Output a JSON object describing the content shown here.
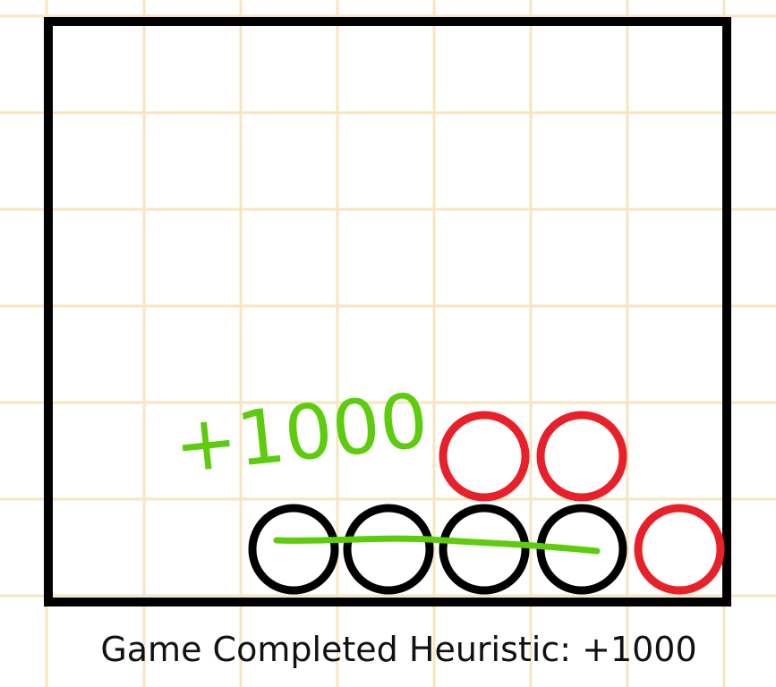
{
  "caption": "Game Completed Heuristic: +1000",
  "annotation": "+1000",
  "board": {
    "rows": 6,
    "columns": 7,
    "pieces": [
      {
        "row": 0,
        "col": 2,
        "player": "black"
      },
      {
        "row": 0,
        "col": 3,
        "player": "black"
      },
      {
        "row": 0,
        "col": 4,
        "player": "black"
      },
      {
        "row": 0,
        "col": 5,
        "player": "black"
      },
      {
        "row": 0,
        "col": 6,
        "player": "red"
      },
      {
        "row": 1,
        "col": 4,
        "player": "red"
      },
      {
        "row": 1,
        "col": 5,
        "player": "red"
      }
    ],
    "winning_line": {
      "row": 0,
      "from_col": 2,
      "to_col": 5
    }
  },
  "colors": {
    "grid": "#f7e6bd",
    "frame": "#000000",
    "black_piece": "#000000",
    "red_piece": "#e8202a",
    "highlight": "#5ccc0c"
  }
}
